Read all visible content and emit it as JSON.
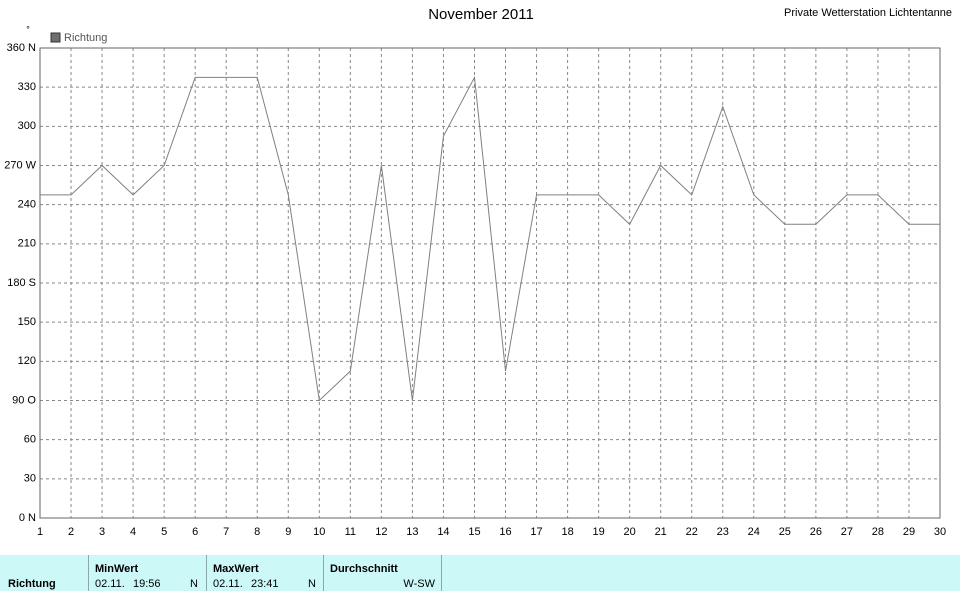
{
  "chart_data": {
    "type": "line",
    "title": "November 2011",
    "subtitle": "Private Wetterstation Lichtentanne",
    "y_unit": "°",
    "x": [
      1,
      2,
      3,
      4,
      5,
      6,
      7,
      8,
      9,
      10,
      11,
      12,
      13,
      14,
      15,
      16,
      17,
      18,
      19,
      20,
      21,
      22,
      23,
      24,
      25,
      26,
      27,
      28,
      29,
      30
    ],
    "series": [
      {
        "name": "Richtung",
        "color": "#808080",
        "values": [
          247.5,
          247.5,
          270,
          247.5,
          270,
          337.5,
          337.5,
          337.5,
          247.5,
          90,
          112.5,
          270,
          90,
          292.5,
          337.5,
          112.5,
          247.5,
          247.5,
          247.5,
          225,
          270,
          247.5,
          315,
          247.5,
          225,
          225,
          247.5,
          247.5,
          225,
          225
        ]
      }
    ],
    "legend_color": "#6e6e6e",
    "xlim": [
      1,
      30
    ],
    "xticks": [
      1,
      2,
      3,
      4,
      5,
      6,
      7,
      8,
      9,
      10,
      11,
      12,
      13,
      14,
      15,
      16,
      17,
      18,
      19,
      20,
      21,
      22,
      23,
      24,
      25,
      26,
      27,
      28,
      29,
      30
    ],
    "ylim": [
      0,
      360
    ],
    "yticks": [
      {
        "value": 0,
        "label": "0 N"
      },
      30,
      60,
      {
        "value": 90,
        "label": "90 O"
      },
      120,
      150,
      {
        "value": 180,
        "label": "180 S"
      },
      210,
      240,
      {
        "value": 270,
        "label": "270 W"
      },
      300,
      330,
      {
        "value": 360,
        "label": "360 N"
      }
    ],
    "grid": true
  },
  "summary": {
    "row_label": "Richtung",
    "min": {
      "header": "MinWert",
      "date": "02.11.",
      "time": "19:56",
      "direction": "N"
    },
    "max": {
      "header": "MaxWert",
      "date": "02.11.",
      "time": "23:41",
      "direction": "N"
    },
    "avg": {
      "header": "Durchschnitt",
      "direction": "W-SW"
    }
  }
}
